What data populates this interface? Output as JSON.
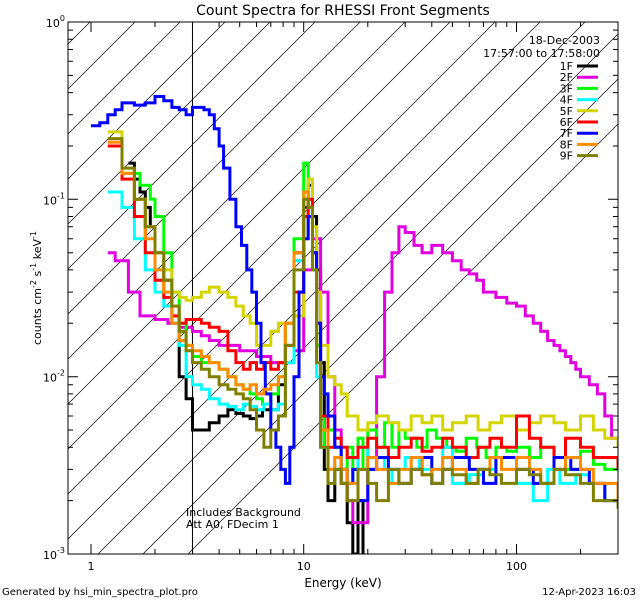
{
  "chart_data": {
    "type": "line",
    "title": "Count Spectra for RHESSI Front Segments",
    "xlabel": "Energy (keV)",
    "ylabel": "counts cm",
    "ylabel_sup1": "-2",
    "ylabel_mid": " s",
    "ylabel_sup2": "-1",
    "ylabel_end": " keV",
    "ylabel_sup3": "-1",
    "xscale": "log",
    "yscale": "log",
    "xlim": [
      0.78,
      300
    ],
    "ylim": [
      0.001,
      1.0
    ],
    "x_tick_labels": [
      {
        "value": 1,
        "label": "1"
      },
      {
        "value": 10,
        "label": "10"
      },
      {
        "value": 100,
        "label": "100"
      }
    ],
    "y_tick_labels": [
      {
        "value": 1.0,
        "base": "10",
        "exp": "0"
      },
      {
        "value": 0.1,
        "base": "10",
        "exp": "-1"
      },
      {
        "value": 0.01,
        "base": "10",
        "exp": "-2"
      },
      {
        "value": 0.001,
        "base": "10",
        "exp": "-3"
      }
    ],
    "excluded_region": {
      "x_start": 0.78,
      "x_end": 3.0
    },
    "annotation_date": "18-Dec-2003",
    "annotation_time": "17:57:00 to 17:58:00",
    "annotation_background": "Includes Background",
    "annotation_atten": "Att A0, FDecim 1",
    "legend_position": "top-right",
    "series": [
      {
        "name": "1F",
        "color": "#000000",
        "x": [
          1.5,
          1.6,
          1.7,
          1.8,
          1.9,
          2.0,
          2.2,
          2.4,
          2.6,
          2.8,
          3.0,
          3.3,
          3.6,
          4.0,
          4.4,
          4.8,
          5.2,
          5.6,
          6.0,
          6.4,
          7.0,
          7.6,
          8.2,
          9.0,
          10.0,
          10.5,
          11.0,
          11.5,
          12.0,
          12.5,
          13.0,
          14.0,
          15.0,
          16.0,
          17.0,
          18.0,
          19.0
        ],
        "y": [
          0.16,
          0.13,
          0.11,
          0.09,
          0.07,
          0.05,
          0.035,
          0.02,
          0.01,
          0.0075,
          0.005,
          0.005,
          0.0055,
          0.006,
          0.0065,
          0.0062,
          0.006,
          0.0058,
          0.006,
          0.0065,
          0.0065,
          0.009,
          0.02,
          0.05,
          0.09,
          0.12,
          0.08,
          0.04,
          0.012,
          0.003,
          0.002,
          0.003,
          0.0025,
          0.0015,
          0.001,
          0.002,
          0.001
        ]
      },
      {
        "name": "2F",
        "color": "#e000e0",
        "x": [
          1.2,
          1.3,
          1.5,
          1.7,
          2.0,
          2.3,
          2.6,
          3.0,
          3.3,
          3.6,
          4.0,
          5.0,
          6.0,
          7.0,
          8.0,
          9.0,
          10.0,
          11.0,
          12.0,
          13.0,
          14.0,
          15.0,
          16.0,
          17.0,
          18.0,
          20.0,
          22.0,
          24.0,
          26.0,
          28.0,
          30.0,
          33.0,
          36.0,
          40.0,
          45.0,
          50.0,
          55.0,
          60.0,
          65.0,
          70.0,
          80.0,
          90.0,
          100.0,
          110.0,
          120.0,
          130.0,
          140.0,
          150.0,
          160.0,
          170.0,
          180.0,
          190.0,
          200.0,
          220.0,
          240.0,
          260.0,
          280.0,
          300.0
        ],
        "y": [
          0.05,
          0.045,
          0.03,
          0.022,
          0.021,
          0.02,
          0.019,
          0.018,
          0.017,
          0.016,
          0.015,
          0.014,
          0.013,
          0.012,
          0.012,
          0.014,
          0.04,
          0.06,
          0.03,
          0.01,
          0.005,
          0.003,
          0.002,
          0.0015,
          0.0015,
          0.003,
          0.01,
          0.03,
          0.05,
          0.07,
          0.065,
          0.055,
          0.05,
          0.055,
          0.05,
          0.045,
          0.04,
          0.038,
          0.035,
          0.03,
          0.028,
          0.026,
          0.025,
          0.022,
          0.02,
          0.018,
          0.016,
          0.015,
          0.014,
          0.013,
          0.012,
          0.011,
          0.01,
          0.009,
          0.008,
          0.006,
          0.0045,
          0.004
        ]
      },
      {
        "name": "3F",
        "color": "#00ff00",
        "x": [
          1.5,
          1.7,
          1.9,
          2.0,
          2.2,
          2.4,
          2.6,
          2.8,
          3.0,
          3.3,
          3.6,
          4.0,
          4.4,
          4.8,
          5.2,
          5.6,
          6.0,
          6.4,
          7.0,
          7.6,
          8.2,
          9.0,
          10.0,
          10.5,
          11.0,
          11.5,
          12.0,
          12.5,
          13.0,
          14.0,
          15.0,
          16.0,
          17.0,
          18.0,
          19.0,
          20.0,
          22.0,
          24.0,
          26.0,
          28.0,
          30.0,
          34.0,
          38.0,
          42.0,
          47.0,
          52.0,
          58.0,
          65.0,
          72.0,
          80.0,
          90.0,
          100.0,
          115.0,
          130.0,
          150.0,
          170.0,
          200.0,
          230.0,
          260.0,
          300.0
        ],
        "y": [
          0.14,
          0.12,
          0.1,
          0.08,
          0.05,
          0.03,
          0.02,
          0.015,
          0.013,
          0.012,
          0.012,
          0.011,
          0.01,
          0.009,
          0.0085,
          0.008,
          0.0075,
          0.007,
          0.008,
          0.01,
          0.02,
          0.06,
          0.16,
          0.1,
          0.05,
          0.015,
          0.006,
          0.004,
          0.005,
          0.004,
          0.003,
          0.004,
          0.003,
          0.0045,
          0.003,
          0.005,
          0.004,
          0.0055,
          0.004,
          0.005,
          0.0045,
          0.004,
          0.005,
          0.0045,
          0.004,
          0.0038,
          0.0045,
          0.004,
          0.0035,
          0.004,
          0.0038,
          0.004,
          0.0035,
          0.004,
          0.0035,
          0.003,
          0.0038,
          0.0032,
          0.003,
          0.003
        ]
      },
      {
        "name": "4F",
        "color": "#00ffff",
        "x": [
          1.2,
          1.4,
          1.6,
          1.8,
          2.0,
          2.2,
          2.4,
          2.6,
          2.8,
          3.0,
          3.3,
          3.6,
          4.0,
          4.4,
          4.8,
          5.2,
          5.6,
          6.0,
          6.5,
          7.0,
          7.6,
          8.2,
          9.0,
          10.0,
          10.5,
          11.0,
          11.5,
          12.0,
          13.0,
          14.0,
          15.0,
          16.0,
          17.0,
          18.0,
          20.0,
          22.0,
          24.0,
          26.0,
          28.0,
          30.0,
          35.0,
          40.0,
          45.0,
          50.0,
          60.0,
          70.0,
          80.0,
          100.0,
          120.0,
          140.0,
          160.0,
          190.0,
          220.0,
          260.0,
          300.0
        ],
        "y": [
          0.11,
          0.09,
          0.06,
          0.04,
          0.03,
          0.025,
          0.02,
          0.015,
          0.01,
          0.009,
          0.0085,
          0.0075,
          0.007,
          0.0068,
          0.0065,
          0.007,
          0.0068,
          0.0065,
          0.007,
          0.0065,
          0.007,
          0.012,
          0.045,
          0.1,
          0.08,
          0.04,
          0.01,
          0.004,
          0.003,
          0.0035,
          0.003,
          0.0025,
          0.003,
          0.004,
          0.003,
          0.0035,
          0.003,
          0.0025,
          0.003,
          0.0035,
          0.003,
          0.003,
          0.004,
          0.0025,
          0.0028,
          0.003,
          0.0035,
          0.0025,
          0.002,
          0.003,
          0.0025,
          0.0028,
          0.0025,
          0.002,
          0.002
        ]
      },
      {
        "name": "5F",
        "color": "#d4d400",
        "x": [
          1.2,
          1.4,
          1.6,
          1.8,
          2.0,
          2.2,
          2.4,
          2.6,
          2.8,
          3.0,
          3.3,
          3.6,
          4.0,
          4.4,
          4.8,
          5.2,
          5.6,
          6.0,
          6.5,
          7.0,
          7.6,
          8.2,
          9.0,
          10.0,
          10.5,
          11.0,
          11.5,
          12.0,
          13.0,
          14.0,
          15.0,
          16.0,
          18.0,
          20.0,
          22.0,
          25.0,
          28.0,
          32.0,
          36.0,
          40.0,
          45.0,
          50.0,
          58.0,
          66.0,
          75.0,
          85.0,
          100.0,
          115.0,
          130.0,
          150.0,
          170.0,
          200.0,
          230.0,
          260.0,
          300.0
        ],
        "y": [
          0.24,
          0.14,
          0.1,
          0.07,
          0.05,
          0.04,
          0.03,
          0.028,
          0.027,
          0.028,
          0.03,
          0.032,
          0.03,
          0.028,
          0.025,
          0.022,
          0.02,
          0.015,
          0.015,
          0.018,
          0.02,
          0.02,
          0.022,
          0.06,
          0.13,
          0.07,
          0.03,
          0.015,
          0.01,
          0.009,
          0.008,
          0.006,
          0.005,
          0.0055,
          0.006,
          0.0055,
          0.005,
          0.006,
          0.0055,
          0.006,
          0.005,
          0.0055,
          0.006,
          0.005,
          0.0055,
          0.006,
          0.005,
          0.0055,
          0.006,
          0.0055,
          0.005,
          0.006,
          0.005,
          0.0045,
          0.004
        ]
      },
      {
        "name": "6F",
        "color": "#ff0000",
        "x": [
          1.2,
          1.4,
          1.6,
          1.8,
          2.0,
          2.2,
          2.4,
          2.6,
          2.8,
          3.0,
          3.3,
          3.6,
          4.0,
          4.4,
          4.8,
          5.2,
          5.6,
          6.0,
          6.5,
          7.0,
          7.6,
          8.2,
          9.0,
          10.0,
          10.5,
          11.0,
          11.5,
          12.0,
          13.0,
          14.0,
          15.0,
          16.0,
          18.0,
          20.0,
          22.0,
          25.0,
          28.0,
          32.0,
          36.0,
          40.0,
          45.0,
          50.0,
          58.0,
          66.0,
          75.0,
          85.0,
          100.0,
          115.0,
          130.0,
          150.0,
          170.0,
          200.0,
          230.0,
          260.0,
          300.0
        ],
        "y": [
          0.2,
          0.13,
          0.08,
          0.05,
          0.035,
          0.028,
          0.022,
          0.02,
          0.021,
          0.021,
          0.02,
          0.019,
          0.018,
          0.014,
          0.012,
          0.011,
          0.012,
          0.011,
          0.012,
          0.011,
          0.012,
          0.015,
          0.03,
          0.08,
          0.1,
          0.05,
          0.02,
          0.006,
          0.004,
          0.0045,
          0.004,
          0.0035,
          0.004,
          0.0045,
          0.004,
          0.0035,
          0.004,
          0.0045,
          0.0038,
          0.004,
          0.0045,
          0.004,
          0.0035,
          0.004,
          0.0045,
          0.004,
          0.006,
          0.0045,
          0.004,
          0.0035,
          0.0045,
          0.004,
          0.0035,
          0.0035,
          0.003
        ]
      },
      {
        "name": "7F",
        "color": "#0000ff",
        "x": [
          1.0,
          1.1,
          1.2,
          1.3,
          1.4,
          1.5,
          1.6,
          1.8,
          2.0,
          2.2,
          2.4,
          2.6,
          2.8,
          3.0,
          3.2,
          3.4,
          3.6,
          3.8,
          4.0,
          4.2,
          4.5,
          4.8,
          5.1,
          5.4,
          5.7,
          6.0,
          6.3,
          6.6,
          7.0,
          7.4,
          7.8,
          8.2,
          8.6,
          9.0,
          9.5,
          10.0,
          10.5,
          11.0,
          11.5,
          12.0,
          12.5,
          13.0,
          14.0,
          15.0,
          16.0,
          17.0,
          18.0,
          20.0,
          22.0,
          25.0,
          28.0,
          32.0,
          36.0,
          40.0,
          45.0,
          50.0,
          60.0,
          70.0,
          80.0,
          100.0,
          120.0,
          150.0,
          180.0,
          220.0,
          260.0,
          300.0
        ],
        "y": [
          0.26,
          0.27,
          0.3,
          0.32,
          0.35,
          0.35,
          0.34,
          0.35,
          0.38,
          0.36,
          0.33,
          0.32,
          0.3,
          0.33,
          0.33,
          0.32,
          0.3,
          0.25,
          0.2,
          0.15,
          0.1,
          0.07,
          0.055,
          0.04,
          0.03,
          0.02,
          0.012,
          0.008,
          0.005,
          0.004,
          0.003,
          0.0025,
          0.004,
          0.01,
          0.03,
          0.06,
          0.08,
          0.05,
          0.02,
          0.01,
          0.008,
          0.006,
          0.004,
          0.003,
          0.0025,
          0.003,
          0.002,
          0.003,
          0.0035,
          0.003,
          0.0025,
          0.003,
          0.0035,
          0.0025,
          0.003,
          0.0035,
          0.003,
          0.0025,
          0.0035,
          0.003,
          0.0025,
          0.0035,
          0.003,
          0.0025,
          0.002,
          0.002
        ]
      },
      {
        "name": "8F",
        "color": "#ff8c00",
        "x": [
          1.2,
          1.4,
          1.6,
          1.8,
          2.0,
          2.2,
          2.4,
          2.6,
          2.8,
          3.0,
          3.3,
          3.6,
          4.0,
          4.4,
          4.8,
          5.2,
          5.6,
          6.0,
          6.5,
          7.0,
          7.6,
          8.2,
          9.0,
          10.0,
          10.5,
          11.0,
          11.5,
          12.0,
          13.0,
          14.0,
          15.0,
          16.0,
          18.0,
          20.0,
          22.0,
          25.0,
          28.0,
          32.0,
          36.0,
          40.0,
          45.0,
          50.0,
          58.0,
          66.0,
          75.0,
          85.0,
          100.0,
          115.0,
          130.0,
          150.0,
          170.0,
          200.0,
          230.0,
          260.0,
          300.0
        ],
        "y": [
          0.21,
          0.14,
          0.1,
          0.06,
          0.04,
          0.03,
          0.02,
          0.016,
          0.015,
          0.014,
          0.013,
          0.012,
          0.011,
          0.01,
          0.009,
          0.0085,
          0.009,
          0.008,
          0.0085,
          0.009,
          0.01,
          0.02,
          0.05,
          0.11,
          0.09,
          0.04,
          0.012,
          0.005,
          0.003,
          0.0035,
          0.003,
          0.0025,
          0.003,
          0.0035,
          0.003,
          0.0025,
          0.003,
          0.0035,
          0.0028,
          0.003,
          0.0035,
          0.003,
          0.0025,
          0.003,
          0.0035,
          0.003,
          0.0035,
          0.003,
          0.0025,
          0.003,
          0.0035,
          0.003,
          0.0025,
          0.0025,
          0.002
        ]
      },
      {
        "name": "9F",
        "color": "#808000",
        "x": [
          1.2,
          1.4,
          1.6,
          1.8,
          2.0,
          2.2,
          2.4,
          2.6,
          2.8,
          3.0,
          3.3,
          3.6,
          4.0,
          4.4,
          4.8,
          5.2,
          5.6,
          6.0,
          6.5,
          7.0,
          7.6,
          8.2,
          9.0,
          10.0,
          10.5,
          11.0,
          11.5,
          12.0,
          13.0,
          14.0,
          15.0,
          16.0,
          18.0,
          20.0,
          22.0,
          25.0,
          28.0,
          32.0,
          36.0,
          40.0,
          45.0,
          50.0,
          58.0,
          66.0,
          75.0,
          85.0,
          100.0,
          115.0,
          130.0,
          150.0,
          170.0,
          200.0,
          230.0,
          260.0,
          300.0
        ],
        "y": [
          0.22,
          0.15,
          0.1,
          0.07,
          0.05,
          0.035,
          0.025,
          0.018,
          0.014,
          0.012,
          0.011,
          0.01,
          0.009,
          0.0085,
          0.008,
          0.0075,
          0.0065,
          0.005,
          0.004,
          0.005,
          0.006,
          0.015,
          0.04,
          0.1,
          0.09,
          0.04,
          0.012,
          0.004,
          0.0025,
          0.003,
          0.0025,
          0.002,
          0.003,
          0.0025,
          0.002,
          0.003,
          0.0025,
          0.003,
          0.0028,
          0.0025,
          0.003,
          0.0028,
          0.0025,
          0.003,
          0.0028,
          0.0025,
          0.003,
          0.0028,
          0.0025,
          0.003,
          0.0028,
          0.0025,
          0.002,
          0.002,
          0.0018
        ]
      }
    ]
  },
  "footer": {
    "generated_by": "Generated by hsi_min_spectra_plot.pro",
    "timestamp": "12-Apr-2023 16:03"
  }
}
